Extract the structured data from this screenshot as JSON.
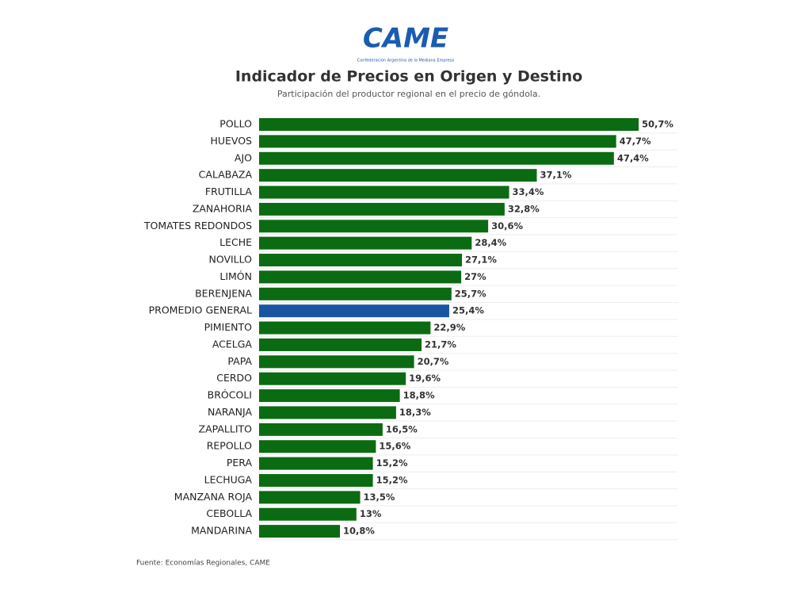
{
  "logo": {
    "name": "CAME",
    "tagline": "Confederación Argentina de la Mediana Empresa"
  },
  "chart_data": {
    "type": "bar",
    "orientation": "horizontal",
    "title": "Indicador de Precios en Origen y Destino",
    "subtitle": "Participación del productor regional en el precio de góndola.",
    "source": "Fuente: Economías Regionales, CAME",
    "categories": [
      "POLLO",
      "HUEVOS",
      "AJO",
      "CALABAZA",
      "FRUTILLA",
      "ZANAHORIA",
      "TOMATES REDONDOS",
      "LECHE",
      "NOVILLO",
      "LIMÓN",
      "BERENJENA",
      "PROMEDIO GENERAL",
      "PIMIENTO",
      "ACELGA",
      "PAPA",
      "CERDO",
      "BRÓCOLI",
      "NARANJA",
      "ZAPALLITO",
      "REPOLLO",
      "PERA",
      "LECHUGA",
      "MANZANA ROJA",
      "CEBOLLA",
      "MANDARINA"
    ],
    "values": [
      50.7,
      47.7,
      47.4,
      37.1,
      33.4,
      32.8,
      30.6,
      28.4,
      27.1,
      27,
      25.7,
      25.4,
      22.9,
      21.7,
      20.7,
      19.6,
      18.8,
      18.3,
      16.5,
      15.6,
      15.2,
      15.2,
      13.5,
      13,
      10.8
    ],
    "value_labels": [
      "50,7%",
      "47,7%",
      "47,4%",
      "37,1%",
      "33,4%",
      "32,8%",
      "30,6%",
      "28,4%",
      "27,1%",
      "27%",
      "25,7%",
      "25,4%",
      "22,9%",
      "21,7%",
      "20,7%",
      "19,6%",
      "18,8%",
      "18,3%",
      "16,5%",
      "15,6%",
      "15,2%",
      "15,2%",
      "13,5%",
      "13%",
      "10,8%"
    ],
    "colors": [
      "#0b6b12",
      "#0b6b12",
      "#0b6b12",
      "#0b6b12",
      "#0b6b12",
      "#0b6b12",
      "#0b6b12",
      "#0b6b12",
      "#0b6b12",
      "#0b6b12",
      "#0b6b12",
      "#1a56a0",
      "#0b6b12",
      "#0b6b12",
      "#0b6b12",
      "#0b6b12",
      "#0b6b12",
      "#0b6b12",
      "#0b6b12",
      "#0b6b12",
      "#0b6b12",
      "#0b6b12",
      "#0b6b12",
      "#0b6b12",
      "#0b6b12"
    ],
    "grid": true
  }
}
